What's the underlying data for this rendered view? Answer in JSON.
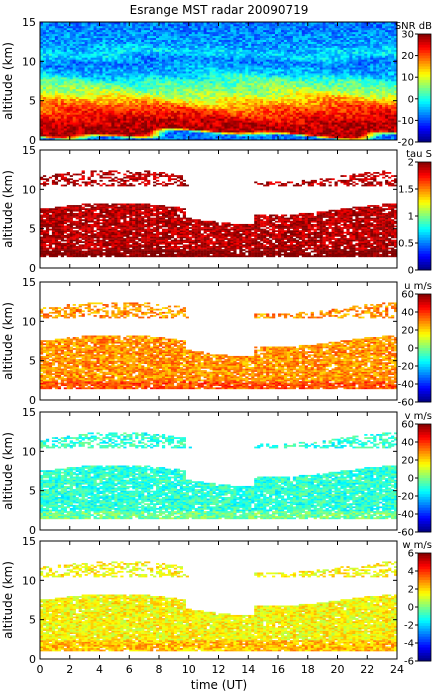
{
  "figure": {
    "title": "Esrange MST radar 20090719",
    "xlabel": "time (UT)"
  },
  "chart_data": [
    {
      "type": "heatmap",
      "name": "snr",
      "ylabel": "altitude (km)",
      "colorbar_label": "SNR dB",
      "colorbar_ticks": [
        "30",
        "20",
        "10",
        "0",
        "-10",
        "-20"
      ],
      "clim": [
        -20,
        30
      ],
      "x_ticks": [
        "0",
        "2",
        "4",
        "6",
        "8",
        "10",
        "12",
        "14",
        "16",
        "18",
        "20",
        "22",
        "24"
      ],
      "y_ticks": [
        "0",
        "5",
        "10",
        "15"
      ],
      "xlim": [
        0,
        24
      ],
      "ylim": [
        0,
        15
      ],
      "profile": [
        {
          "alt": 0.5,
          "value": -8
        },
        {
          "alt": 1.0,
          "value": 28
        },
        {
          "alt": 2.5,
          "value": 26
        },
        {
          "alt": 4.0,
          "value": 20
        },
        {
          "alt": 5.0,
          "value": 14
        },
        {
          "alt": 6.0,
          "value": 7
        },
        {
          "alt": 7.5,
          "value": 2
        },
        {
          "alt": 8.5,
          "value": -4
        },
        {
          "alt": 10.0,
          "value": -8
        },
        {
          "alt": 11.0,
          "value": -2
        },
        {
          "alt": 12.0,
          "value": -6
        },
        {
          "alt": 13.5,
          "value": -7
        },
        {
          "alt": 15.0,
          "value": -8
        }
      ]
    },
    {
      "type": "heatmap",
      "name": "tau",
      "ylabel": "altitude (km)",
      "colorbar_label": "tau S",
      "colorbar_ticks": [
        "2",
        "1.5",
        "1",
        "0.5",
        "0"
      ],
      "clim": [
        0,
        2
      ],
      "x_ticks": [
        "0",
        "2",
        "4",
        "6",
        "8",
        "10",
        "12",
        "14",
        "16",
        "18",
        "20",
        "22",
        "24"
      ],
      "y_ticks": [
        "0",
        "5",
        "10",
        "15"
      ],
      "xlim": [
        0,
        24
      ],
      "ylim": [
        0,
        15
      ],
      "typical_value": 1.9,
      "coverage": [
        {
          "from": 1.5,
          "to": 7.5,
          "density": 0.9
        },
        {
          "from": 10.5,
          "to": 11.7,
          "density": 0.5
        }
      ]
    },
    {
      "type": "heatmap",
      "name": "u",
      "ylabel": "altitude (km)",
      "colorbar_label": "u m/s",
      "colorbar_ticks": [
        "60",
        "40",
        "20",
        "0",
        "-20",
        "-40",
        "-60"
      ],
      "clim": [
        -60,
        60
      ],
      "x_ticks": [
        "0",
        "2",
        "4",
        "6",
        "8",
        "10",
        "12",
        "14",
        "16",
        "18",
        "20",
        "22",
        "24"
      ],
      "y_ticks": [
        "0",
        "5",
        "10",
        "15"
      ],
      "xlim": [
        0,
        24
      ],
      "ylim": [
        0,
        15
      ],
      "typical_value": 28,
      "coverage": [
        {
          "from": 1.5,
          "to": 7.5,
          "density": 0.9
        },
        {
          "from": 10.5,
          "to": 11.7,
          "density": 0.5
        }
      ]
    },
    {
      "type": "heatmap",
      "name": "v",
      "ylabel": "altitude (km)",
      "colorbar_label": "v m/s",
      "colorbar_ticks": [
        "60",
        "40",
        "20",
        "0",
        "-20",
        "-40",
        "-60"
      ],
      "clim": [
        -60,
        60
      ],
      "x_ticks": [
        "0",
        "2",
        "4",
        "6",
        "8",
        "10",
        "12",
        "14",
        "16",
        "18",
        "20",
        "22",
        "24"
      ],
      "y_ticks": [
        "0",
        "5",
        "10",
        "15"
      ],
      "xlim": [
        0,
        24
      ],
      "ylim": [
        0,
        15
      ],
      "typical_value": -10,
      "coverage": [
        {
          "from": 1.5,
          "to": 7.5,
          "density": 0.9
        },
        {
          "from": 10.5,
          "to": 11.7,
          "density": 0.5
        }
      ]
    },
    {
      "type": "heatmap",
      "name": "w",
      "ylabel": "altitude (km)",
      "colorbar_label": "w m/s",
      "colorbar_ticks": [
        "6",
        "4",
        "2",
        "0",
        "-2",
        "-4",
        "-6"
      ],
      "clim": [
        -6,
        6
      ],
      "x_ticks": [
        "0",
        "2",
        "4",
        "6",
        "8",
        "10",
        "12",
        "14",
        "16",
        "18",
        "20",
        "22",
        "24"
      ],
      "y_ticks": [
        "0",
        "5",
        "10",
        "15"
      ],
      "xlim": [
        0,
        24
      ],
      "ylim": [
        0,
        15
      ],
      "typical_value": 1.5,
      "coverage": [
        {
          "from": 1.0,
          "to": 7.5,
          "density": 0.95
        },
        {
          "from": 10.5,
          "to": 11.7,
          "density": 0.5
        }
      ]
    }
  ]
}
